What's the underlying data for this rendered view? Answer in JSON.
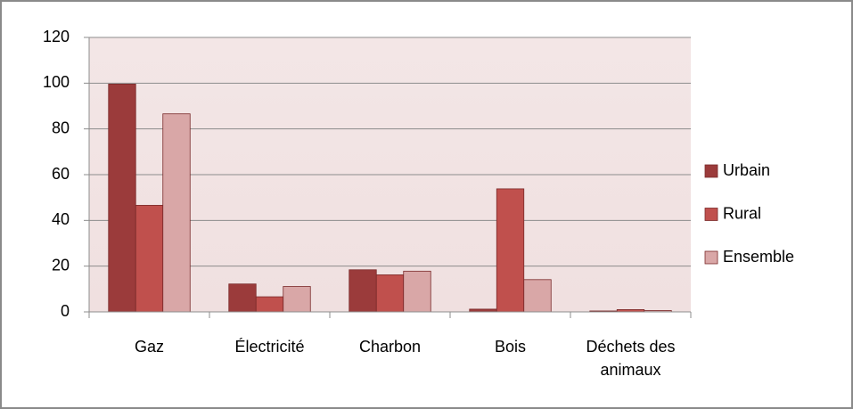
{
  "chart_data": {
    "type": "bar",
    "categories": [
      "Gaz",
      "Électricité",
      "Charbon",
      "Bois",
      "Déchets des animaux"
    ],
    "series": [
      {
        "name": "Urbain",
        "color": "#9b3b3b",
        "values": [
          99.6,
          12.2,
          18.4,
          1.2,
          0.4
        ]
      },
      {
        "name": "Rural",
        "color": "#c0504d",
        "values": [
          46.6,
          6.6,
          16.2,
          53.8,
          1.0
        ]
      },
      {
        "name": "Ensemble",
        "color": "#d9a7a7",
        "values": [
          86.6,
          11.1,
          17.8,
          14.1,
          0.6
        ]
      }
    ],
    "ylim": [
      0,
      120
    ],
    "yticks": [
      0,
      20,
      40,
      60,
      80,
      100,
      120
    ],
    "grid": true,
    "legend": "right"
  }
}
